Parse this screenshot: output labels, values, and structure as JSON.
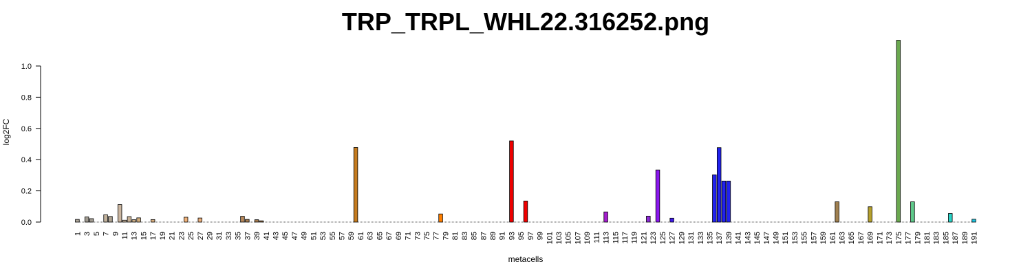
{
  "chart_data": {
    "type": "bar",
    "title": "TRP_TRPL_WHL22.316252.png",
    "xlabel": "metacells",
    "ylabel": "log2FC",
    "ylim": [
      0,
      1.2
    ],
    "yticks": [
      "0.0",
      "0.2",
      "0.4",
      "0.6",
      "0.8",
      "1.0"
    ],
    "x_range": [
      1,
      191
    ],
    "x_tick_step": 2,
    "values": {
      "1": 0.017,
      "3": 0.033,
      "4": 0.022,
      "7": 0.047,
      "8": 0.036,
      "10": 0.112,
      "11": 0.012,
      "12": 0.035,
      "13": 0.015,
      "14": 0.027,
      "17": 0.016,
      "24": 0.031,
      "27": 0.026,
      "36": 0.037,
      "37": 0.017,
      "39": 0.015,
      "40": 0.008,
      "60": 0.478,
      "78": 0.052,
      "93": 0.52,
      "96": 0.135,
      "113": 0.065,
      "122": 0.038,
      "124": 0.334,
      "127": 0.025,
      "136": 0.303,
      "137": 0.477,
      "138": 0.263,
      "139": 0.263,
      "162": 0.13,
      "169": 0.098,
      "175": 1.165,
      "178": 0.13,
      "186": 0.055,
      "191": 0.018
    },
    "colors": {
      "1": "#b0a89b",
      "3": "#a09a90",
      "4": "#a09a90",
      "7": "#c2b29c",
      "8": "#b0a594",
      "10": "#cbb6a0",
      "11": "#c8b39b",
      "12": "#c7b196",
      "13": "#c9ac86",
      "14": "#d1ad7d",
      "17": "#d8ae7e",
      "24": "#f0b27a",
      "27": "#e8ae7c",
      "36": "#b7895c",
      "37": "#a87d52",
      "39": "#a37a4e",
      "40": "#8f6a44",
      "60": "#c57b1e",
      "78": "#ff7f00",
      "93": "#ee0000",
      "96": "#ee0000",
      "113": "#a41ecd",
      "122": "#8e2bd8",
      "124": "#8a18ee",
      "127": "#3f1be8",
      "136": "#2222ee",
      "137": "#2222ee",
      "138": "#2222ee",
      "139": "#2222ee",
      "162": "#a08050",
      "169": "#b5a02e",
      "175": "#6aa84f",
      "178": "#5ec98a",
      "186": "#2ad4c8",
      "191": "#1ec4e0"
    },
    "default_color": "#999999",
    "grid": false,
    "legend": "none"
  }
}
